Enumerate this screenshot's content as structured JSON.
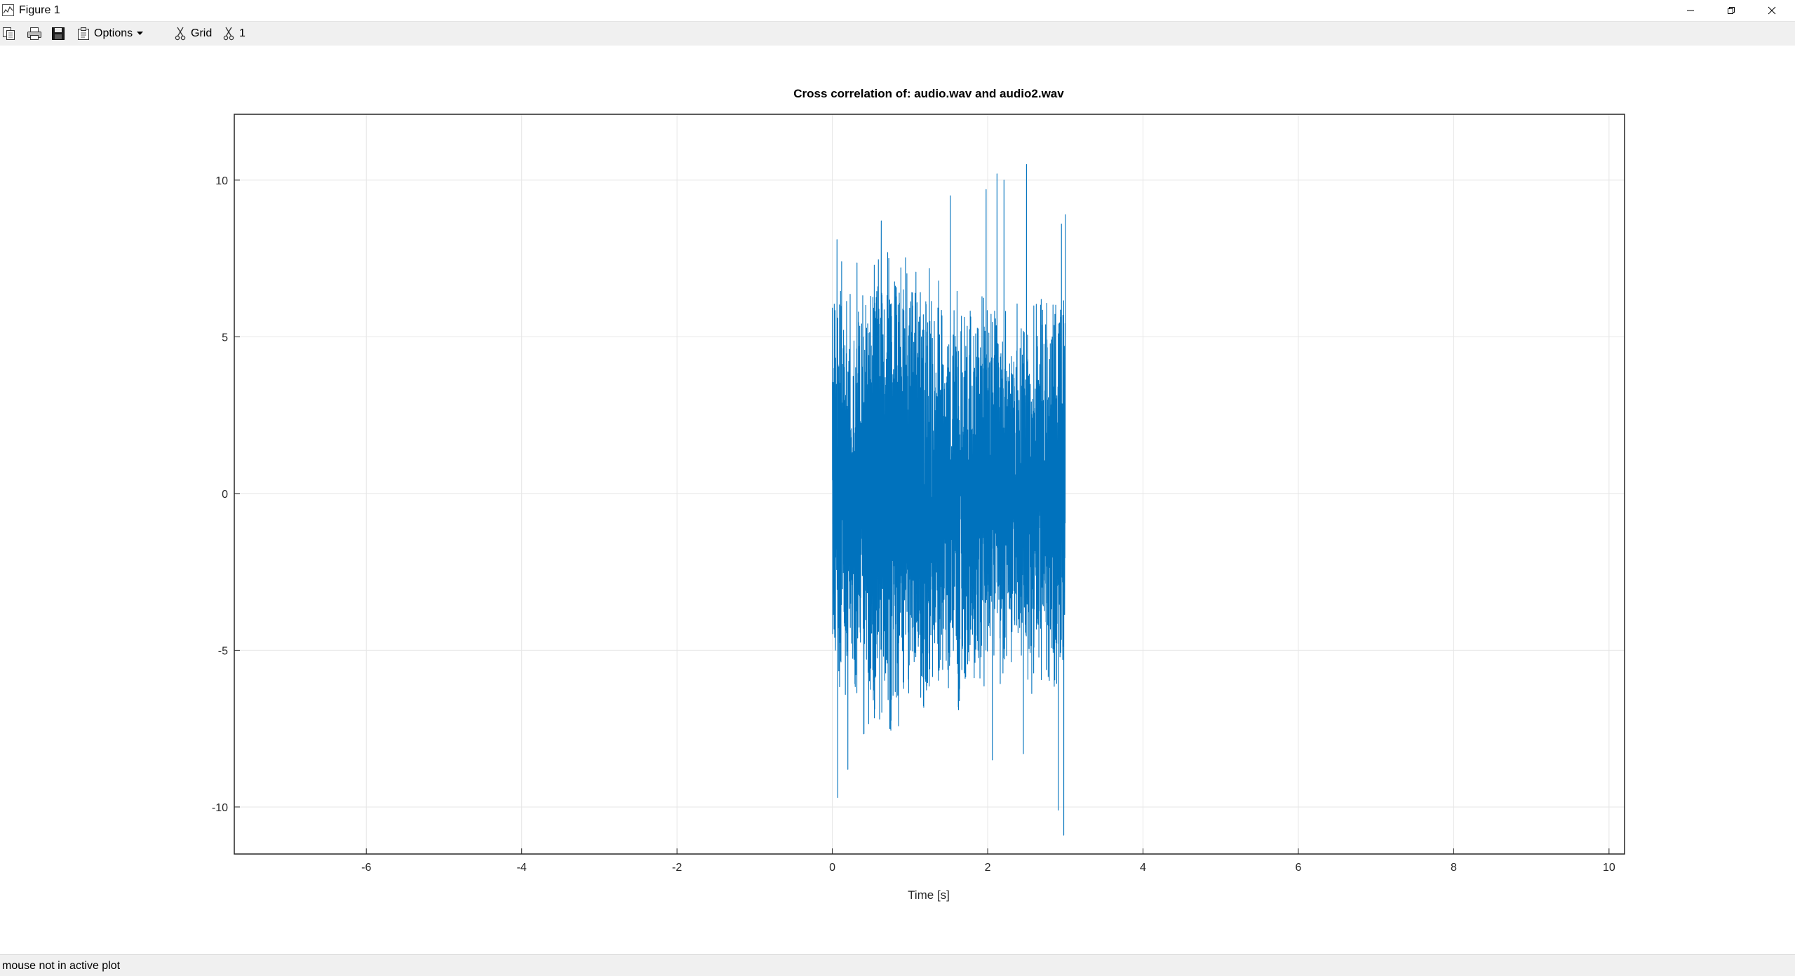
{
  "window": {
    "title": "Figure 1",
    "icons": {
      "app": "figure-icon",
      "minimize": "minimize-icon",
      "restore": "restore-icon",
      "close": "close-icon"
    }
  },
  "toolbar": {
    "copy_icon": "copy-icon",
    "print_icon": "print-icon",
    "save_icon": "save-icon",
    "options_label": "Options",
    "options_icon": "clipboard-icon",
    "grid_label": "Grid",
    "grid_icon": "axes-toggle-icon",
    "axis_label": "1",
    "axis_icon": "axes-toggle-icon"
  },
  "status": {
    "text": "mouse not in active plot"
  },
  "colors": {
    "series": "#0072BD",
    "grid": "#e6e6e6",
    "toolbar": "#f0f0f0"
  },
  "chart_data": {
    "type": "line",
    "title": "Cross correlation of: audio.wav and audio2.wav",
    "xlabel": "Time [s]",
    "ylabel": "",
    "xlim": [
      -7.7,
      10.2
    ],
    "ylim": [
      -11.5,
      12.1
    ],
    "xticks": [
      -6,
      -4,
      -2,
      0,
      2,
      4,
      6,
      8,
      10
    ],
    "yticks": [
      -10,
      -5,
      0,
      5,
      10
    ],
    "grid": true,
    "series": [
      {
        "x_range": [
          0,
          3
        ],
        "peaks": [
          {
            "x": 0.02,
            "y": 2.8
          },
          {
            "x": 0.04,
            "y": -5.0
          },
          {
            "x": 0.06,
            "y": 8.1
          },
          {
            "x": 0.07,
            "y": -9.7
          },
          {
            "x": 0.12,
            "y": 7.4
          },
          {
            "x": 0.2,
            "y": -8.8
          },
          {
            "x": 0.63,
            "y": 8.7
          },
          {
            "x": 1.52,
            "y": 9.5
          },
          {
            "x": 1.98,
            "y": 9.7
          },
          {
            "x": 2.06,
            "y": -8.5
          },
          {
            "x": 2.12,
            "y": 10.2
          },
          {
            "x": 2.21,
            "y": 10.0
          },
          {
            "x": 2.46,
            "y": -8.3
          },
          {
            "x": 2.5,
            "y": 10.5
          },
          {
            "x": 2.91,
            "y": -10.1
          },
          {
            "x": 2.95,
            "y": 8.6
          },
          {
            "x": 2.98,
            "y": -10.9
          },
          {
            "x": 3.0,
            "y": 8.9
          }
        ]
      }
    ]
  }
}
